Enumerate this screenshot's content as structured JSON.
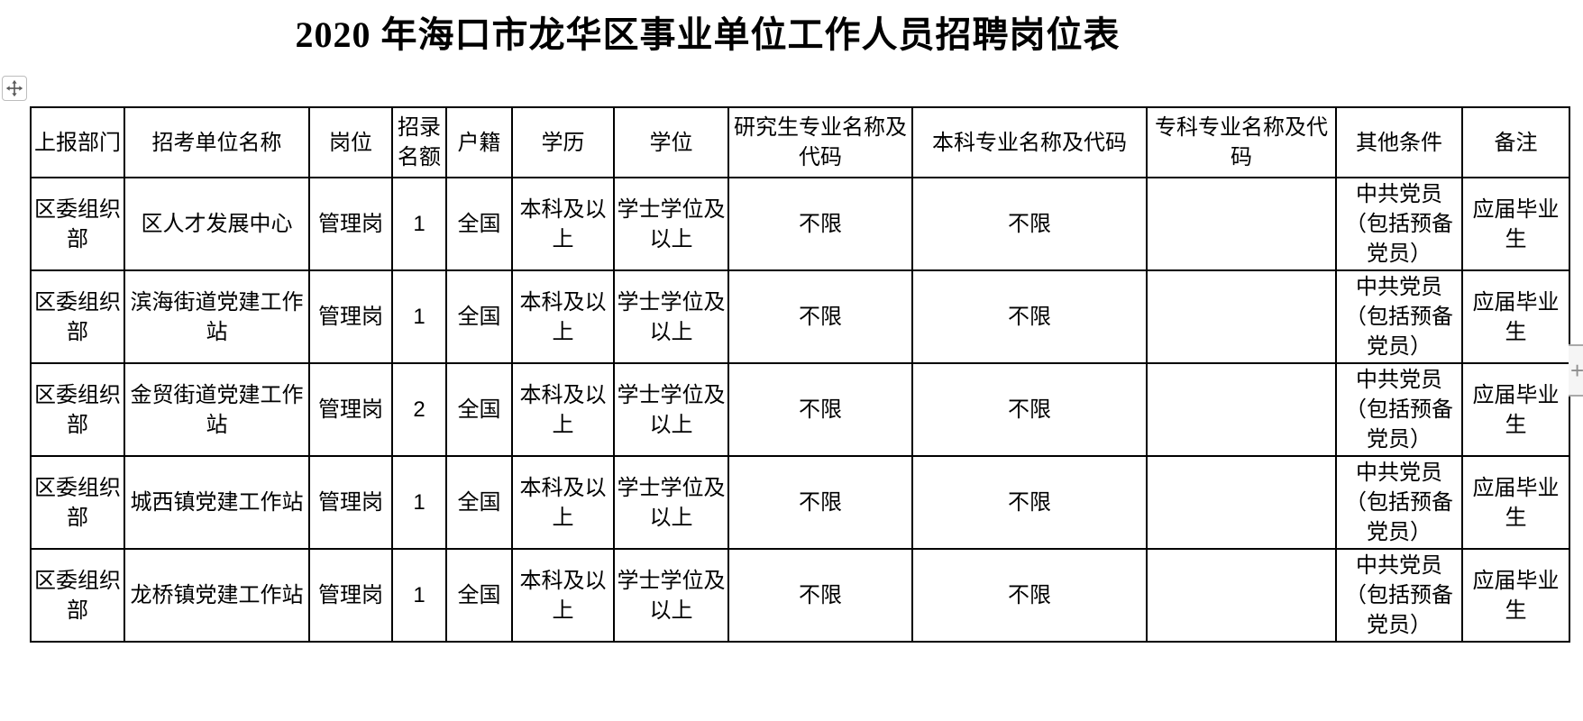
{
  "title": "2020 年海口市龙华区事业单位工作人员招聘岗位表",
  "table": {
    "headers": [
      "上报部门",
      "招考单位名称",
      "岗位",
      "招录名额",
      "户籍",
      "学历",
      "学位",
      "研究生专业名称及代码",
      "本科专业名称及代码",
      "专科专业名称及代码",
      "其他条件",
      "备注"
    ],
    "rows": [
      [
        "区委组织部",
        "区人才发展中心",
        "管理岗",
        "1",
        "全国",
        "本科及以上",
        "学士学位及以上",
        "不限",
        "不限",
        "",
        "中共党员（包括预备党员）",
        "应届毕业生"
      ],
      [
        "区委组织部",
        "滨海街道党建工作站",
        "管理岗",
        "1",
        "全国",
        "本科及以上",
        "学士学位及以上",
        "不限",
        "不限",
        "",
        "中共党员（包括预备党员）",
        "应届毕业生"
      ],
      [
        "区委组织部",
        "金贸街道党建工作站",
        "管理岗",
        "2",
        "全国",
        "本科及以上",
        "学士学位及以上",
        "不限",
        "不限",
        "",
        "中共党员（包括预备党员）",
        "应届毕业生"
      ],
      [
        "区委组织部",
        "城西镇党建工作站",
        "管理岗",
        "1",
        "全国",
        "本科及以上",
        "学士学位及以上",
        "不限",
        "不限",
        "",
        "中共党员（包括预备党员）",
        "应届毕业生"
      ],
      [
        "区委组织部",
        "龙桥镇党建工作站",
        "管理岗",
        "1",
        "全国",
        "本科及以上",
        "学士学位及以上",
        "不限",
        "不限",
        "",
        "中共党员（包括预备党员）",
        "应届毕业生"
      ]
    ]
  },
  "controls": {
    "move_handle_icon": "move-icon",
    "add_control_label": "+"
  },
  "colors": {
    "table_border": "#000000",
    "text": "#000000",
    "page_background": "#ffffff",
    "side_control_background": "#f5f5f5",
    "side_control_border": "#a9a9a9",
    "side_control_glyph": "#8f8f8f",
    "move_handle_border": "#bdbdbd",
    "move_handle_glyph": "#5a5a5a"
  }
}
